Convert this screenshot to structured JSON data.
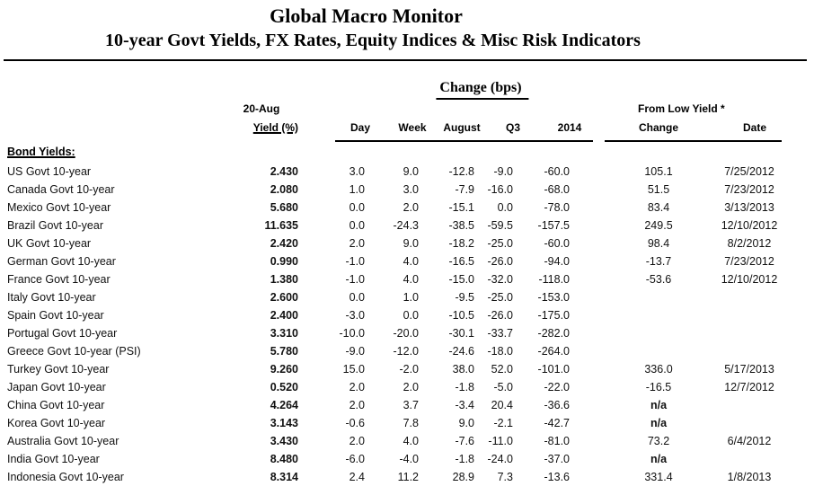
{
  "title": "Global Macro Monitor",
  "subtitle": "10-year Govt Yields, FX Rates, Equity Indices & Misc Risk Indicators",
  "header": {
    "group_change_bps": "Change (bps)",
    "group_from_low_yield": "From Low Yield *",
    "yield_date": "20-Aug",
    "yield_label": "Yield (%)",
    "day": "Day",
    "week": "Week",
    "august": "August",
    "q3": "Q3",
    "y2014": "2014",
    "change": "Change",
    "date": "Date"
  },
  "section_label": "Bond Yields:",
  "table": {
    "rows": [
      {
        "name": "US Govt 10-year",
        "yield": "2.430",
        "day": "3.0",
        "week": "9.0",
        "aug": "-12.8",
        "q3": "-9.0",
        "y2014": "-60.0",
        "chg": "105.1",
        "date": "7/25/2012"
      },
      {
        "name": "Canada Govt 10-year",
        "yield": "2.080",
        "day": "1.0",
        "week": "3.0",
        "aug": "-7.9",
        "q3": "-16.0",
        "y2014": "-68.0",
        "chg": "51.5",
        "date": "7/23/2012"
      },
      {
        "name": "Mexico Govt 10-year",
        "yield": "5.680",
        "day": "0.0",
        "week": "2.0",
        "aug": "-15.1",
        "q3": "0.0",
        "y2014": "-78.0",
        "chg": "83.4",
        "date": "3/13/2013"
      },
      {
        "name": "Brazil Govt 10-year",
        "yield": "11.635",
        "day": "0.0",
        "week": "-24.3",
        "aug": "-38.5",
        "q3": "-59.5",
        "y2014": "-157.5",
        "chg": "249.5",
        "date": "12/10/2012"
      },
      {
        "name": "UK Govt 10-year",
        "yield": "2.420",
        "day": "2.0",
        "week": "9.0",
        "aug": "-18.2",
        "q3": "-25.0",
        "y2014": "-60.0",
        "chg": "98.4",
        "date": "8/2/2012"
      },
      {
        "name": "German Govt 10-year",
        "yield": "0.990",
        "day": "-1.0",
        "week": "4.0",
        "aug": "-16.5",
        "q3": "-26.0",
        "y2014": "-94.0",
        "chg": "-13.7",
        "date": "7/23/2012"
      },
      {
        "name": "France Govt 10-year",
        "yield": "1.380",
        "day": "-1.0",
        "week": "4.0",
        "aug": "-15.0",
        "q3": "-32.0",
        "y2014": "-118.0",
        "chg": "-53.6",
        "date": "12/10/2012"
      },
      {
        "name": "Italy Govt 10-year",
        "yield": "2.600",
        "day": "0.0",
        "week": "1.0",
        "aug": "-9.5",
        "q3": "-25.0",
        "y2014": "-153.0",
        "chg": "",
        "date": ""
      },
      {
        "name": "Spain Govt 10-year",
        "yield": "2.400",
        "day": "-3.0",
        "week": "0.0",
        "aug": "-10.5",
        "q3": "-26.0",
        "y2014": "-175.0",
        "chg": "",
        "date": ""
      },
      {
        "name": "Portugal Govt 10-year",
        "yield": "3.310",
        "day": "-10.0",
        "week": "-20.0",
        "aug": "-30.1",
        "q3": "-33.7",
        "y2014": "-282.0",
        "chg": "",
        "date": ""
      },
      {
        "name": "Greece Govt 10-year (PSI)",
        "yield": "5.780",
        "day": "-9.0",
        "week": "-12.0",
        "aug": "-24.6",
        "q3": "-18.0",
        "y2014": "-264.0",
        "chg": "",
        "date": ""
      },
      {
        "name": "Turkey Govt 10-year",
        "yield": "9.260",
        "day": "15.0",
        "week": "-2.0",
        "aug": "38.0",
        "q3": "52.0",
        "y2014": "-101.0",
        "chg": "336.0",
        "date": "5/17/2013"
      },
      {
        "name": "Japan Govt 10-year",
        "yield": "0.520",
        "day": "2.0",
        "week": "2.0",
        "aug": "-1.8",
        "q3": "-5.0",
        "y2014": "-22.0",
        "chg": "-16.5",
        "date": "12/7/2012"
      },
      {
        "name": "China Govt 10-year",
        "yield": "4.264",
        "day": "2.0",
        "week": "3.7",
        "aug": "-3.4",
        "q3": "20.4",
        "y2014": "-36.6",
        "chg": "n/a",
        "date": ""
      },
      {
        "name": "Korea Govt 10-year",
        "yield": "3.143",
        "day": "-0.6",
        "week": "7.8",
        "aug": "9.0",
        "q3": "-2.1",
        "y2014": "-42.7",
        "chg": "n/a",
        "date": ""
      },
      {
        "name": "Australia Govt 10-year",
        "yield": "3.430",
        "day": "2.0",
        "week": "4.0",
        "aug": "-7.6",
        "q3": "-11.0",
        "y2014": "-81.0",
        "chg": "73.2",
        "date": "6/4/2012"
      },
      {
        "name": "India Govt 10-year",
        "yield": "8.480",
        "day": "-6.0",
        "week": "-4.0",
        "aug": "-1.8",
        "q3": "-24.0",
        "y2014": "-37.0",
        "chg": "n/a",
        "date": ""
      },
      {
        "name": "Indonesia Govt 10-year",
        "yield": "8.314",
        "day": "2.4",
        "week": "11.2",
        "aug": "28.9",
        "q3": "7.3",
        "y2014": "-13.6",
        "chg": "331.4",
        "date": "1/8/2013"
      }
    ]
  }
}
